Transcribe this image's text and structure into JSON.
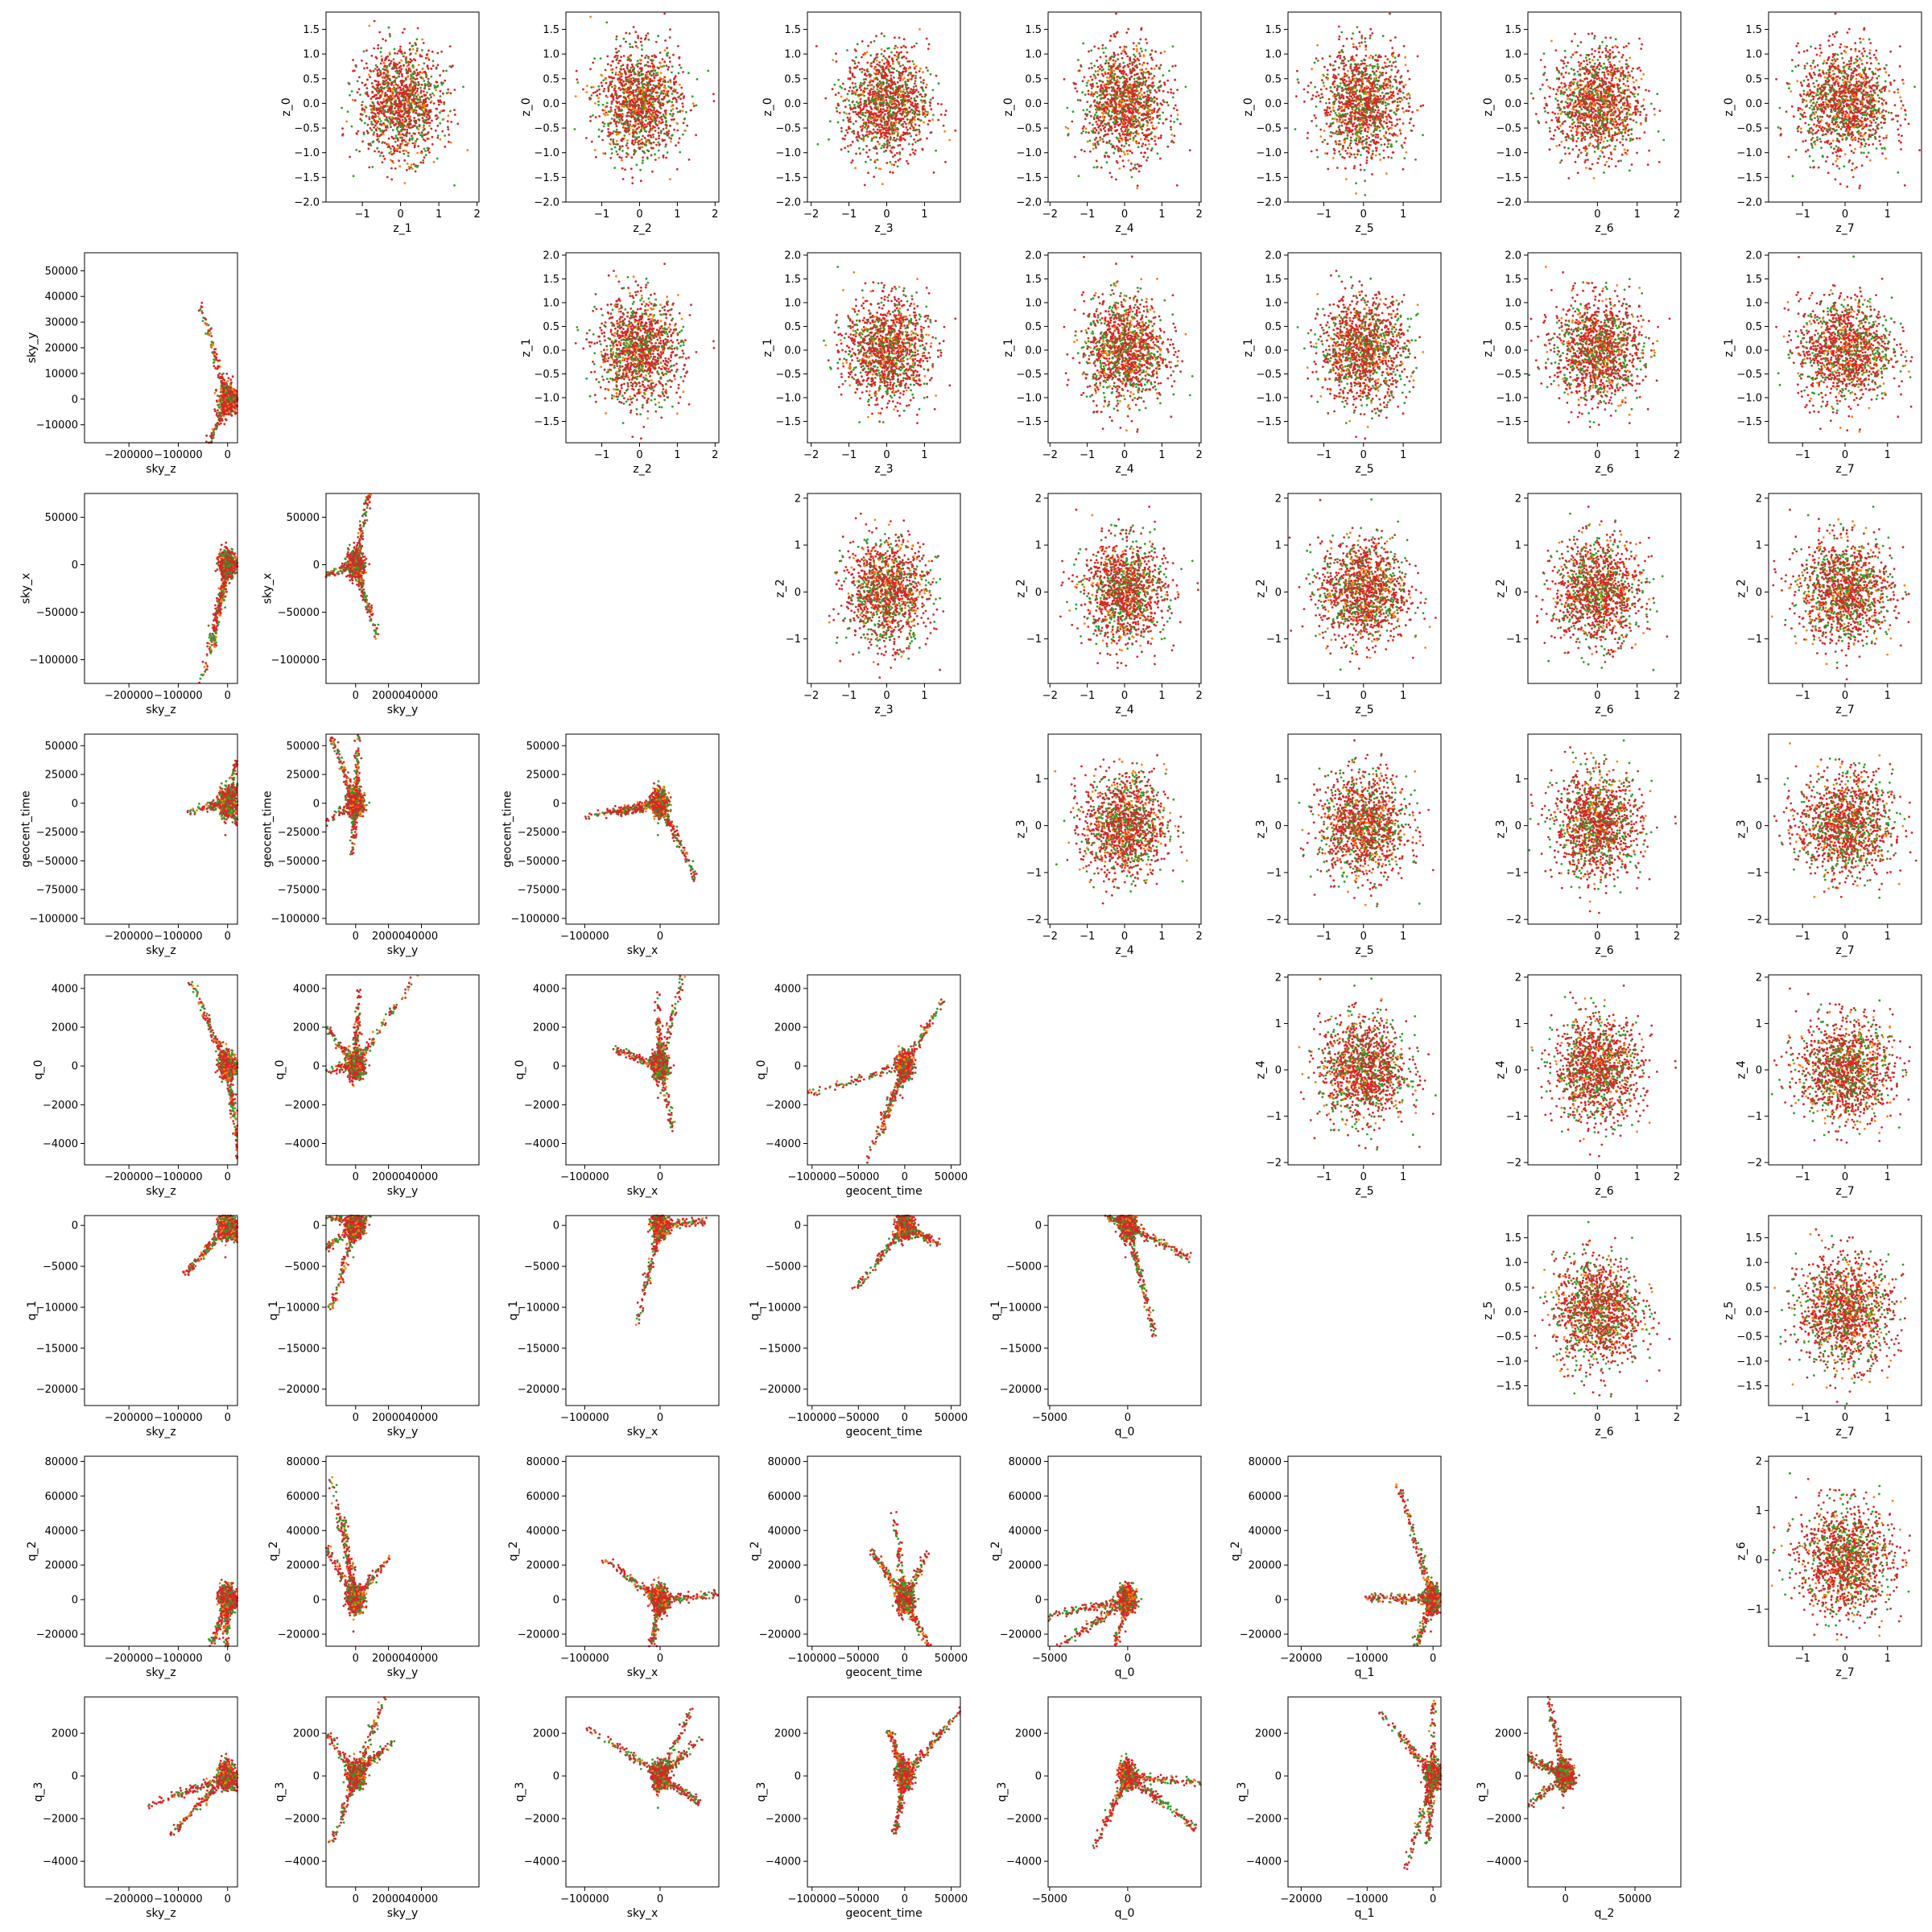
{
  "figure": {
    "type": "corner-scatter-matrix",
    "colors": {
      "series_a": "#d62728",
      "series_b": "#2ca02c",
      "series_c": "#ff7f0e"
    },
    "point_style": "small dots, ~1500 samples per panel",
    "grid": false
  },
  "chart_data": {
    "type": "scatter",
    "grid_size": 8,
    "variables": {
      "lower_triangle_x": [
        "sky_z",
        "sky_y",
        "sky_x",
        "geocent_time",
        "q_0",
        "q_1",
        "q_2"
      ],
      "lower_triangle_y": [
        "sky_y",
        "sky_x",
        "geocent_time",
        "q_0",
        "q_1",
        "q_2",
        "q_3"
      ],
      "upper_triangle_x": [
        "z_1",
        "z_2",
        "z_3",
        "z_4",
        "z_5",
        "z_6",
        "z_7"
      ],
      "upper_triangle_y": [
        "z_0",
        "z_1",
        "z_2",
        "z_3",
        "z_4",
        "z_5",
        "z_6"
      ]
    },
    "axes": {
      "sky_z": {
        "lim": [
          -290000,
          20000
        ],
        "ticks": [
          -200000,
          -100000,
          0
        ],
        "ticklabels": [
          "−200000",
          "−100000",
          "0"
        ]
      },
      "sky_y": {
        "lim": [
          -18000,
          75000
        ],
        "ticks": [
          0,
          20000,
          40000
        ],
        "ticklabels": [
          "0",
          "20000",
          "40000"
        ]
      },
      "sky_x": {
        "lim": [
          -125000,
          78000
        ],
        "ticks": [
          -100000,
          0
        ],
        "ticklabels": [
          "−100000",
          "0"
        ]
      },
      "geocent_time": {
        "lim": [
          -105000,
          60000
        ],
        "ticks": [
          -100000,
          -50000,
          0,
          50000
        ],
        "ticklabels": [
          "−100000",
          "−50000",
          "0",
          "50000"
        ]
      },
      "q_0": {
        "lim": [
          -5100,
          4700
        ],
        "ticks": [
          -5000,
          0
        ],
        "ticklabels": [
          "−5000",
          "0"
        ],
        "yticks": [
          -4000,
          -2000,
          0,
          2000,
          4000
        ],
        "yticklabels": [
          "−4000",
          "−2000",
          "0",
          "2000",
          "4000"
        ]
      },
      "q_1": {
        "lim": [
          -22000,
          1200
        ],
        "ticks": [
          -20000,
          -10000,
          0
        ],
        "ticklabels": [
          "−20000",
          "−10000",
          "0"
        ],
        "yticks": [
          -20000,
          -15000,
          -10000,
          -5000,
          0
        ],
        "yticklabels": [
          "−20000",
          "−15000",
          "−10000",
          "−5000",
          "0"
        ]
      },
      "q_2": {
        "lim": [
          -27000,
          83000
        ],
        "ticks": [
          0,
          50000
        ],
        "ticklabels": [
          "0",
          "50000"
        ],
        "yticks": [
          -20000,
          0,
          20000,
          40000,
          60000,
          80000
        ],
        "yticklabels": [
          "−20000",
          "0",
          "20000",
          "40000",
          "60000",
          "80000"
        ]
      },
      "q_3": {
        "lim": [
          -5200,
          3700
        ],
        "ticks": [
          -4000,
          -2000,
          0,
          2000
        ],
        "ticklabels": [
          "−4000",
          "−2000",
          "0",
          "2000"
        ]
      },
      "yaxis_overrides": {
        "sky_y": {
          "lim": [
            -17000,
            57000
          ],
          "ticks": [
            -10000,
            0,
            10000,
            20000,
            30000,
            40000,
            50000
          ],
          "ticklabels": [
            "−10000",
            "0",
            "10000",
            "20000",
            "30000",
            "40000",
            "50000"
          ]
        },
        "sky_x": {
          "lim": [
            -125000,
            75000
          ],
          "ticks": [
            -100000,
            -50000,
            0,
            50000
          ],
          "ticklabels": [
            "−100000",
            "−50000",
            "0",
            "50000"
          ]
        },
        "geocent_time": {
          "lim": [
            -105000,
            60000
          ],
          "ticks": [
            -100000,
            -75000,
            -50000,
            -25000,
            0,
            25000,
            50000
          ],
          "ticklabels": [
            "−100000",
            "−75000",
            "−50000",
            "−25000",
            "0",
            "25000",
            "50000"
          ]
        }
      },
      "z_0": {
        "lim": [
          -2.0,
          1.85
        ],
        "ticks": [
          -2.0,
          -1.5,
          -1.0,
          -0.5,
          0.0,
          0.5,
          1.0,
          1.5
        ],
        "ticklabels": [
          "−2.0",
          "−1.5",
          "−1.0",
          "−0.5",
          "0.0",
          "0.5",
          "1.0",
          "1.5"
        ]
      },
      "z_1": {
        "lim": [
          -1.95,
          2.05
        ],
        "ticks": [
          -1.5,
          -1.0,
          -0.5,
          0.0,
          0.5,
          1.0,
          1.5,
          2.0
        ],
        "ticklabels": [
          "−1.5",
          "−1.0",
          "−0.5",
          "0.0",
          "0.5",
          "1.0",
          "1.5",
          "2.0"
        ],
        "xticks": [
          -1,
          0,
          1,
          2
        ],
        "xticklabels": [
          "−1",
          "0",
          "1",
          "2"
        ]
      },
      "z_2": {
        "lim": [
          -1.95,
          2.1
        ],
        "ticks": [
          -1,
          0,
          1,
          2
        ],
        "ticklabels": [
          "−1",
          "0",
          "1",
          "2"
        ]
      },
      "z_3": {
        "lim": [
          -2.1,
          1.95
        ],
        "ticks": [
          -2,
          -1,
          0,
          1
        ],
        "ticklabels": [
          "−2",
          "−1",
          "0",
          "1"
        ]
      },
      "z_4": {
        "lim": [
          -2.05,
          2.05
        ],
        "ticks": [
          -2,
          -1,
          0,
          1,
          2
        ],
        "ticklabels": [
          "−2",
          "−1",
          "0",
          "1",
          "2"
        ]
      },
      "z_5": {
        "lim": [
          -1.9,
          1.95
        ],
        "ticks": [
          -1,
          0,
          1
        ],
        "ticklabels": [
          "−1",
          "0",
          "1"
        ],
        "yticks": [
          -1.5,
          -1.0,
          -0.5,
          0.0,
          0.5,
          1.0,
          1.5
        ],
        "yticklabels": [
          "−1.5",
          "−1.0",
          "−0.5",
          "0.0",
          "0.5",
          "1.0",
          "1.5"
        ]
      },
      "z_6": {
        "lim": [
          -1.75,
          2.1
        ],
        "ticks": [
          0,
          1,
          2
        ],
        "ticklabels": [
          "0",
          "1",
          "2"
        ],
        "yticks": [
          -1,
          0,
          1,
          2
        ],
        "yticklabels": [
          "−1",
          "0",
          "1",
          "2"
        ]
      },
      "z_7": {
        "lim": [
          -1.8,
          1.8
        ],
        "ticks": [
          -1,
          0,
          1
        ],
        "ticklabels": [
          "−1",
          "0",
          "1"
        ]
      }
    }
  }
}
